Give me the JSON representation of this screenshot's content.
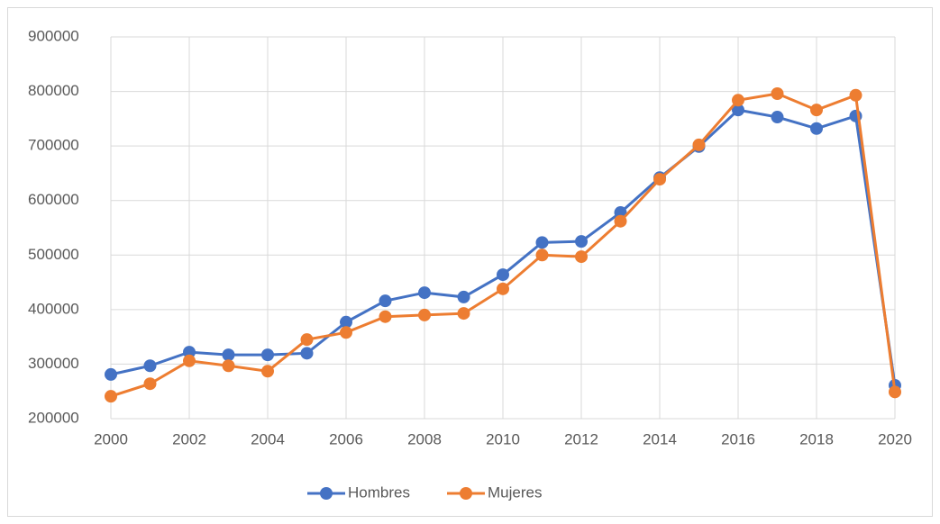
{
  "chart_data": {
    "type": "line",
    "x": [
      2000,
      2001,
      2002,
      2003,
      2004,
      2005,
      2006,
      2007,
      2008,
      2009,
      2010,
      2011,
      2012,
      2013,
      2014,
      2015,
      2016,
      2017,
      2018,
      2019,
      2020
    ],
    "series": [
      {
        "name": "Hombres",
        "color": "#4472c4",
        "values": [
          281000,
          297000,
          322000,
          317000,
          317000,
          320000,
          377000,
          416000,
          431000,
          423000,
          464000,
          523000,
          525000,
          578000,
          642000,
          699000,
          766000,
          753000,
          732000,
          755000,
          261000
        ]
      },
      {
        "name": "Mujeres",
        "color": "#ed7d31",
        "values": [
          241000,
          264000,
          306000,
          297000,
          287000,
          345000,
          358000,
          387000,
          390000,
          393000,
          438000,
          500000,
          497000,
          562000,
          639000,
          702000,
          784000,
          796000,
          766000,
          793000,
          249000
        ]
      }
    ],
    "xlim": [
      2000,
      2020
    ],
    "xticks": [
      2000,
      2002,
      2004,
      2006,
      2008,
      2010,
      2012,
      2014,
      2016,
      2018,
      2020
    ],
    "ylim": [
      200000,
      900000
    ],
    "yticks": [
      200000,
      300000,
      400000,
      500000,
      600000,
      700000,
      800000,
      900000
    ],
    "grid": true,
    "legend": "bottom"
  }
}
